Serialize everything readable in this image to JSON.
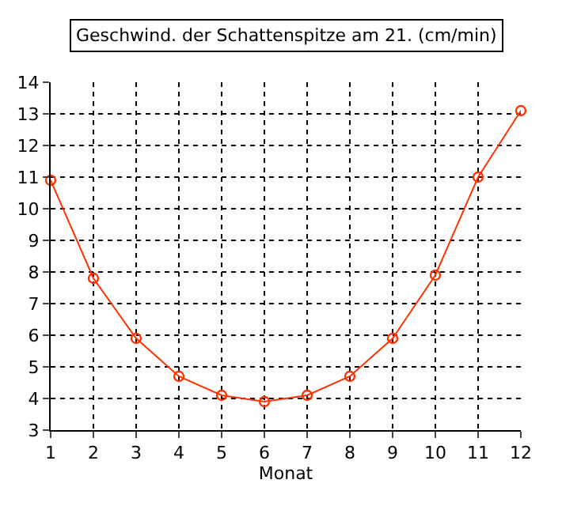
{
  "chart_data": {
    "type": "line",
    "title": "Geschwind. der Schattenspitze am 21. (cm/min)",
    "xlabel": "Monat",
    "x": [
      1,
      2,
      3,
      4,
      5,
      6,
      7,
      8,
      9,
      10,
      11,
      12
    ],
    "series": [
      {
        "color": "#ff3300",
        "values": [
          10.9,
          7.8,
          5.9,
          4.7,
          4.1,
          3.9,
          4.1,
          4.7,
          5.9,
          7.9,
          11.0,
          13.1
        ]
      }
    ],
    "xlim": [
      1,
      12
    ],
    "xticks": [
      1,
      2,
      3,
      4,
      5,
      6,
      7,
      8,
      9,
      10,
      11,
      12
    ],
    "ylim": [
      3,
      14
    ],
    "yticks": [
      3,
      4,
      5,
      6,
      7,
      8,
      9,
      10,
      11,
      12,
      13,
      14
    ],
    "grid": true,
    "marker": "circle",
    "line_style": "solid"
  }
}
